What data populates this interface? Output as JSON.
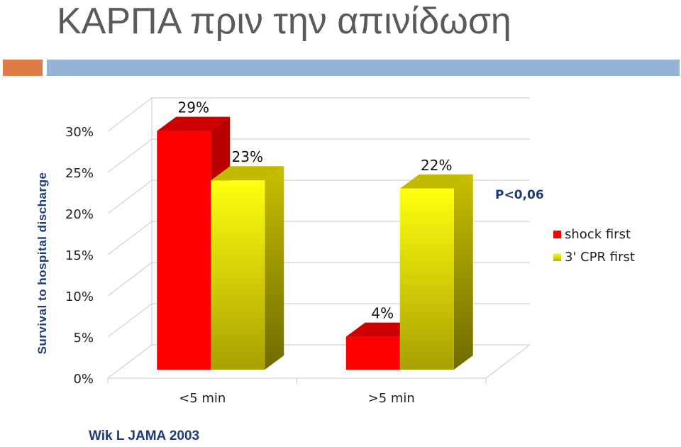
{
  "slide": {
    "title": "ΚΑΡΠΑ πριν την απινίδωση",
    "citation": "Wik L JAMA 2003",
    "accent_orange": "#e07b47",
    "accent_blue": "#95b3d7"
  },
  "chart_data": {
    "type": "bar",
    "style": "3d-clustered",
    "categories": [
      "<5 min",
      ">5 min"
    ],
    "series": [
      {
        "name": "shock first",
        "values": [
          29,
          4
        ],
        "labels": [
          "29%",
          "4%"
        ],
        "color": "#ff0000"
      },
      {
        "name": "3' CPR first",
        "values": [
          23,
          22
        ],
        "labels": [
          "23%",
          "22%"
        ],
        "color": "#ffff00"
      }
    ],
    "ylabel": "Survival to hospital discharge",
    "xlabel": "",
    "ylim": [
      0,
      30
    ],
    "yticks": [
      "0%",
      "5%",
      "10%",
      "15%",
      "20%",
      "25%",
      "30%"
    ],
    "annotation": "P<0,06",
    "legend_position": "right",
    "grid": true
  }
}
